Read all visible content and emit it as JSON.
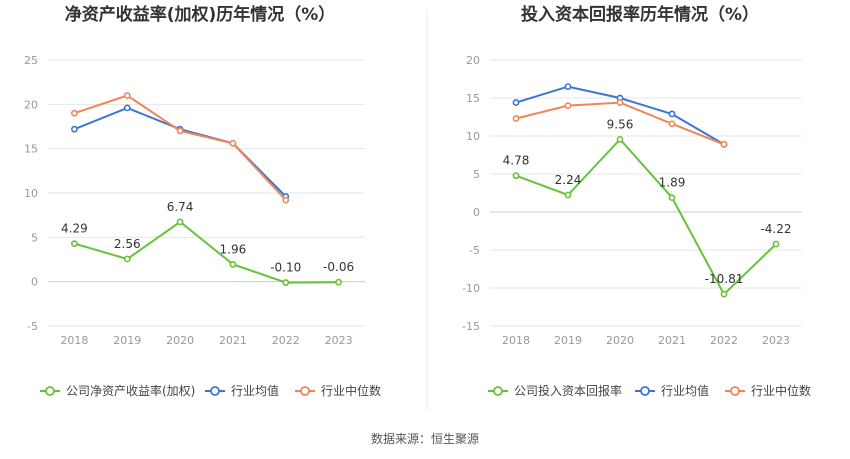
{
  "source_label": "数据来源：恒生聚源",
  "colors": {
    "company": "#67C23A",
    "avg": "#3A75D6",
    "median": "#F08556",
    "grid": "#E6E6E6",
    "divider": "#E8E8E8"
  },
  "chart_data": [
    {
      "type": "line",
      "title": "净资产收益率(加权)历年情况（%）",
      "categories": [
        "2018",
        "2019",
        "2020",
        "2021",
        "2022",
        "2023"
      ],
      "ylim": [
        -5,
        25
      ],
      "yticks": [
        25,
        20,
        15,
        10,
        5,
        0,
        -5
      ],
      "grid": true,
      "legend_position": "bottom",
      "series": [
        {
          "key": "company",
          "name": "公司净资产收益率(加权)",
          "values": [
            4.29,
            2.56,
            6.74,
            1.96,
            -0.1,
            -0.06
          ],
          "labels": [
            "4.29",
            "2.56",
            "6.74",
            "1.96",
            "-0.10",
            "-0.06"
          ]
        },
        {
          "key": "avg",
          "name": "行业均值",
          "values": [
            17.2,
            19.6,
            17.2,
            15.6,
            9.6,
            null
          ]
        },
        {
          "key": "median",
          "name": "行业中位数",
          "values": [
            19.0,
            21.0,
            17.0,
            15.6,
            9.2,
            null
          ]
        }
      ]
    },
    {
      "type": "line",
      "title": "投入资本回报率历年情况（%）",
      "categories": [
        "2018",
        "2019",
        "2020",
        "2021",
        "2022",
        "2023"
      ],
      "ylim": [
        -15,
        20
      ],
      "yticks": [
        20,
        15,
        10,
        5,
        0,
        -5,
        -10,
        -15
      ],
      "grid": true,
      "legend_position": "bottom",
      "series": [
        {
          "key": "company",
          "name": "公司投入资本回报率",
          "values": [
            4.78,
            2.24,
            9.56,
            1.89,
            -10.81,
            -4.22
          ],
          "labels": [
            "4.78",
            "2.24",
            "9.56",
            "1.89",
            "-10.81",
            "-4.22"
          ]
        },
        {
          "key": "avg",
          "name": "行业均值",
          "values": [
            14.4,
            16.5,
            15.0,
            12.9,
            8.9,
            null
          ]
        },
        {
          "key": "median",
          "name": "行业中位数",
          "values": [
            12.3,
            14.0,
            14.4,
            11.6,
            8.9,
            null
          ]
        }
      ]
    }
  ]
}
